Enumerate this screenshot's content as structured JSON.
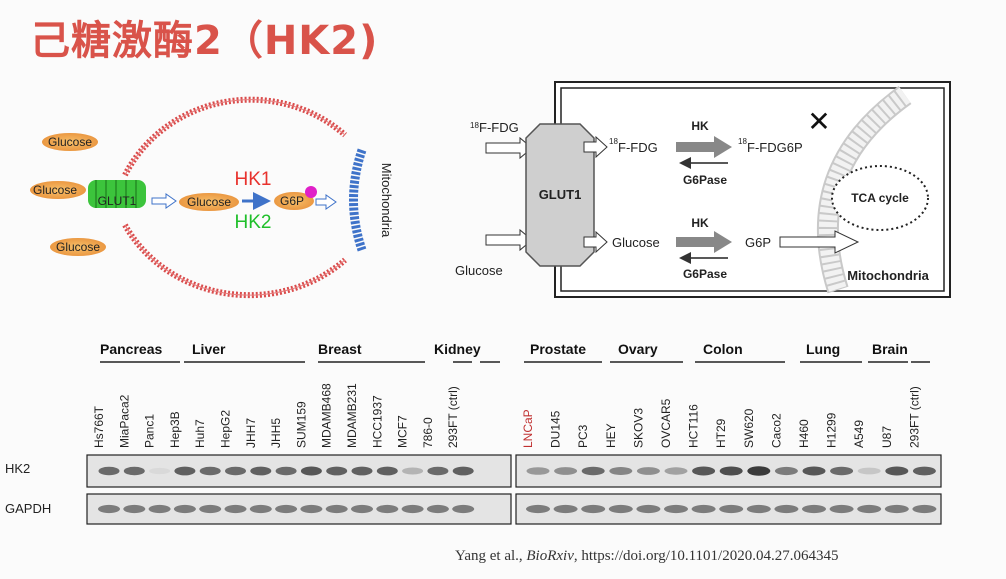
{
  "title": "己糖激酶2（HK2)",
  "colors": {
    "title": "#d9534a",
    "hk1": "#e8322d",
    "hk2": "#1fbf2a",
    "orange": "#f0a040",
    "membrane": "#d94b4b",
    "mito": "#3f73c9",
    "glut": "#3cc43c"
  },
  "left_diagram": {
    "glucose_outside": [
      "Glucose",
      "Glucose",
      "Glucose"
    ],
    "glut1": "GLUT1",
    "glucose_inside": "Glucose",
    "hk1": "HK1",
    "hk2": "HK2",
    "g6p": "G6P",
    "mitochondria": "Mitochondria"
  },
  "right_diagram": {
    "fdg_outside": "F-FDG",
    "fdg_sup": "18",
    "glucose_outside": "Glucose",
    "glut1": "GLUT1",
    "fdg_inside": "F-FDG",
    "hk_top": "HK",
    "g6pase_top": "G6Pase",
    "fdg6p": "F-FDG6P",
    "cross": "✕",
    "tca": "TCA cycle",
    "glucose_inside": "Glucose",
    "hk_bottom": "HK",
    "g6pase_bottom": "G6Pase",
    "g6p": "G6P",
    "mitochondria": "Mitochondria"
  },
  "blot": {
    "groups_left": [
      "Pancreas",
      "Liver",
      "Breast",
      "Kidney"
    ],
    "groups_right": [
      "Prostate",
      "Ovary",
      "Colon",
      "Lung",
      "Brain"
    ],
    "lanes_left": [
      "Hs766T",
      "MiaPaca2",
      "Panc1",
      "Hep3B",
      "Huh7",
      "HepG2",
      "JHH7",
      "JHH5",
      "SUM159",
      "MDAMB468",
      "MDAMB231",
      "HCC1937",
      "MCF7",
      "786-0",
      "293FT (ctrl)"
    ],
    "lanes_right": [
      "LNCaP",
      "DU145",
      "PC3",
      "HEY",
      "SKOV3",
      "OVCAR5",
      "HCT116",
      "HT29",
      "SW620",
      "Caco2",
      "H460",
      "H1299",
      "A549",
      "U87",
      "293FT (ctrl)"
    ],
    "row_labels": [
      "HK2",
      "GAPDH"
    ],
    "hk2_left": [
      0.7,
      0.7,
      0.1,
      0.75,
      0.7,
      0.7,
      0.75,
      0.7,
      0.8,
      0.75,
      0.75,
      0.75,
      0.3,
      0.7,
      0.75
    ],
    "hk2_right": [
      0.45,
      0.5,
      0.7,
      0.55,
      0.5,
      0.4,
      0.8,
      0.85,
      0.95,
      0.6,
      0.8,
      0.7,
      0.2,
      0.8,
      0.75
    ]
  },
  "citation": {
    "authors": "Yang et al., ",
    "journal": "BioRxiv",
    "rest": ", https://doi.org/10.1101/2020.04.27.064345"
  }
}
